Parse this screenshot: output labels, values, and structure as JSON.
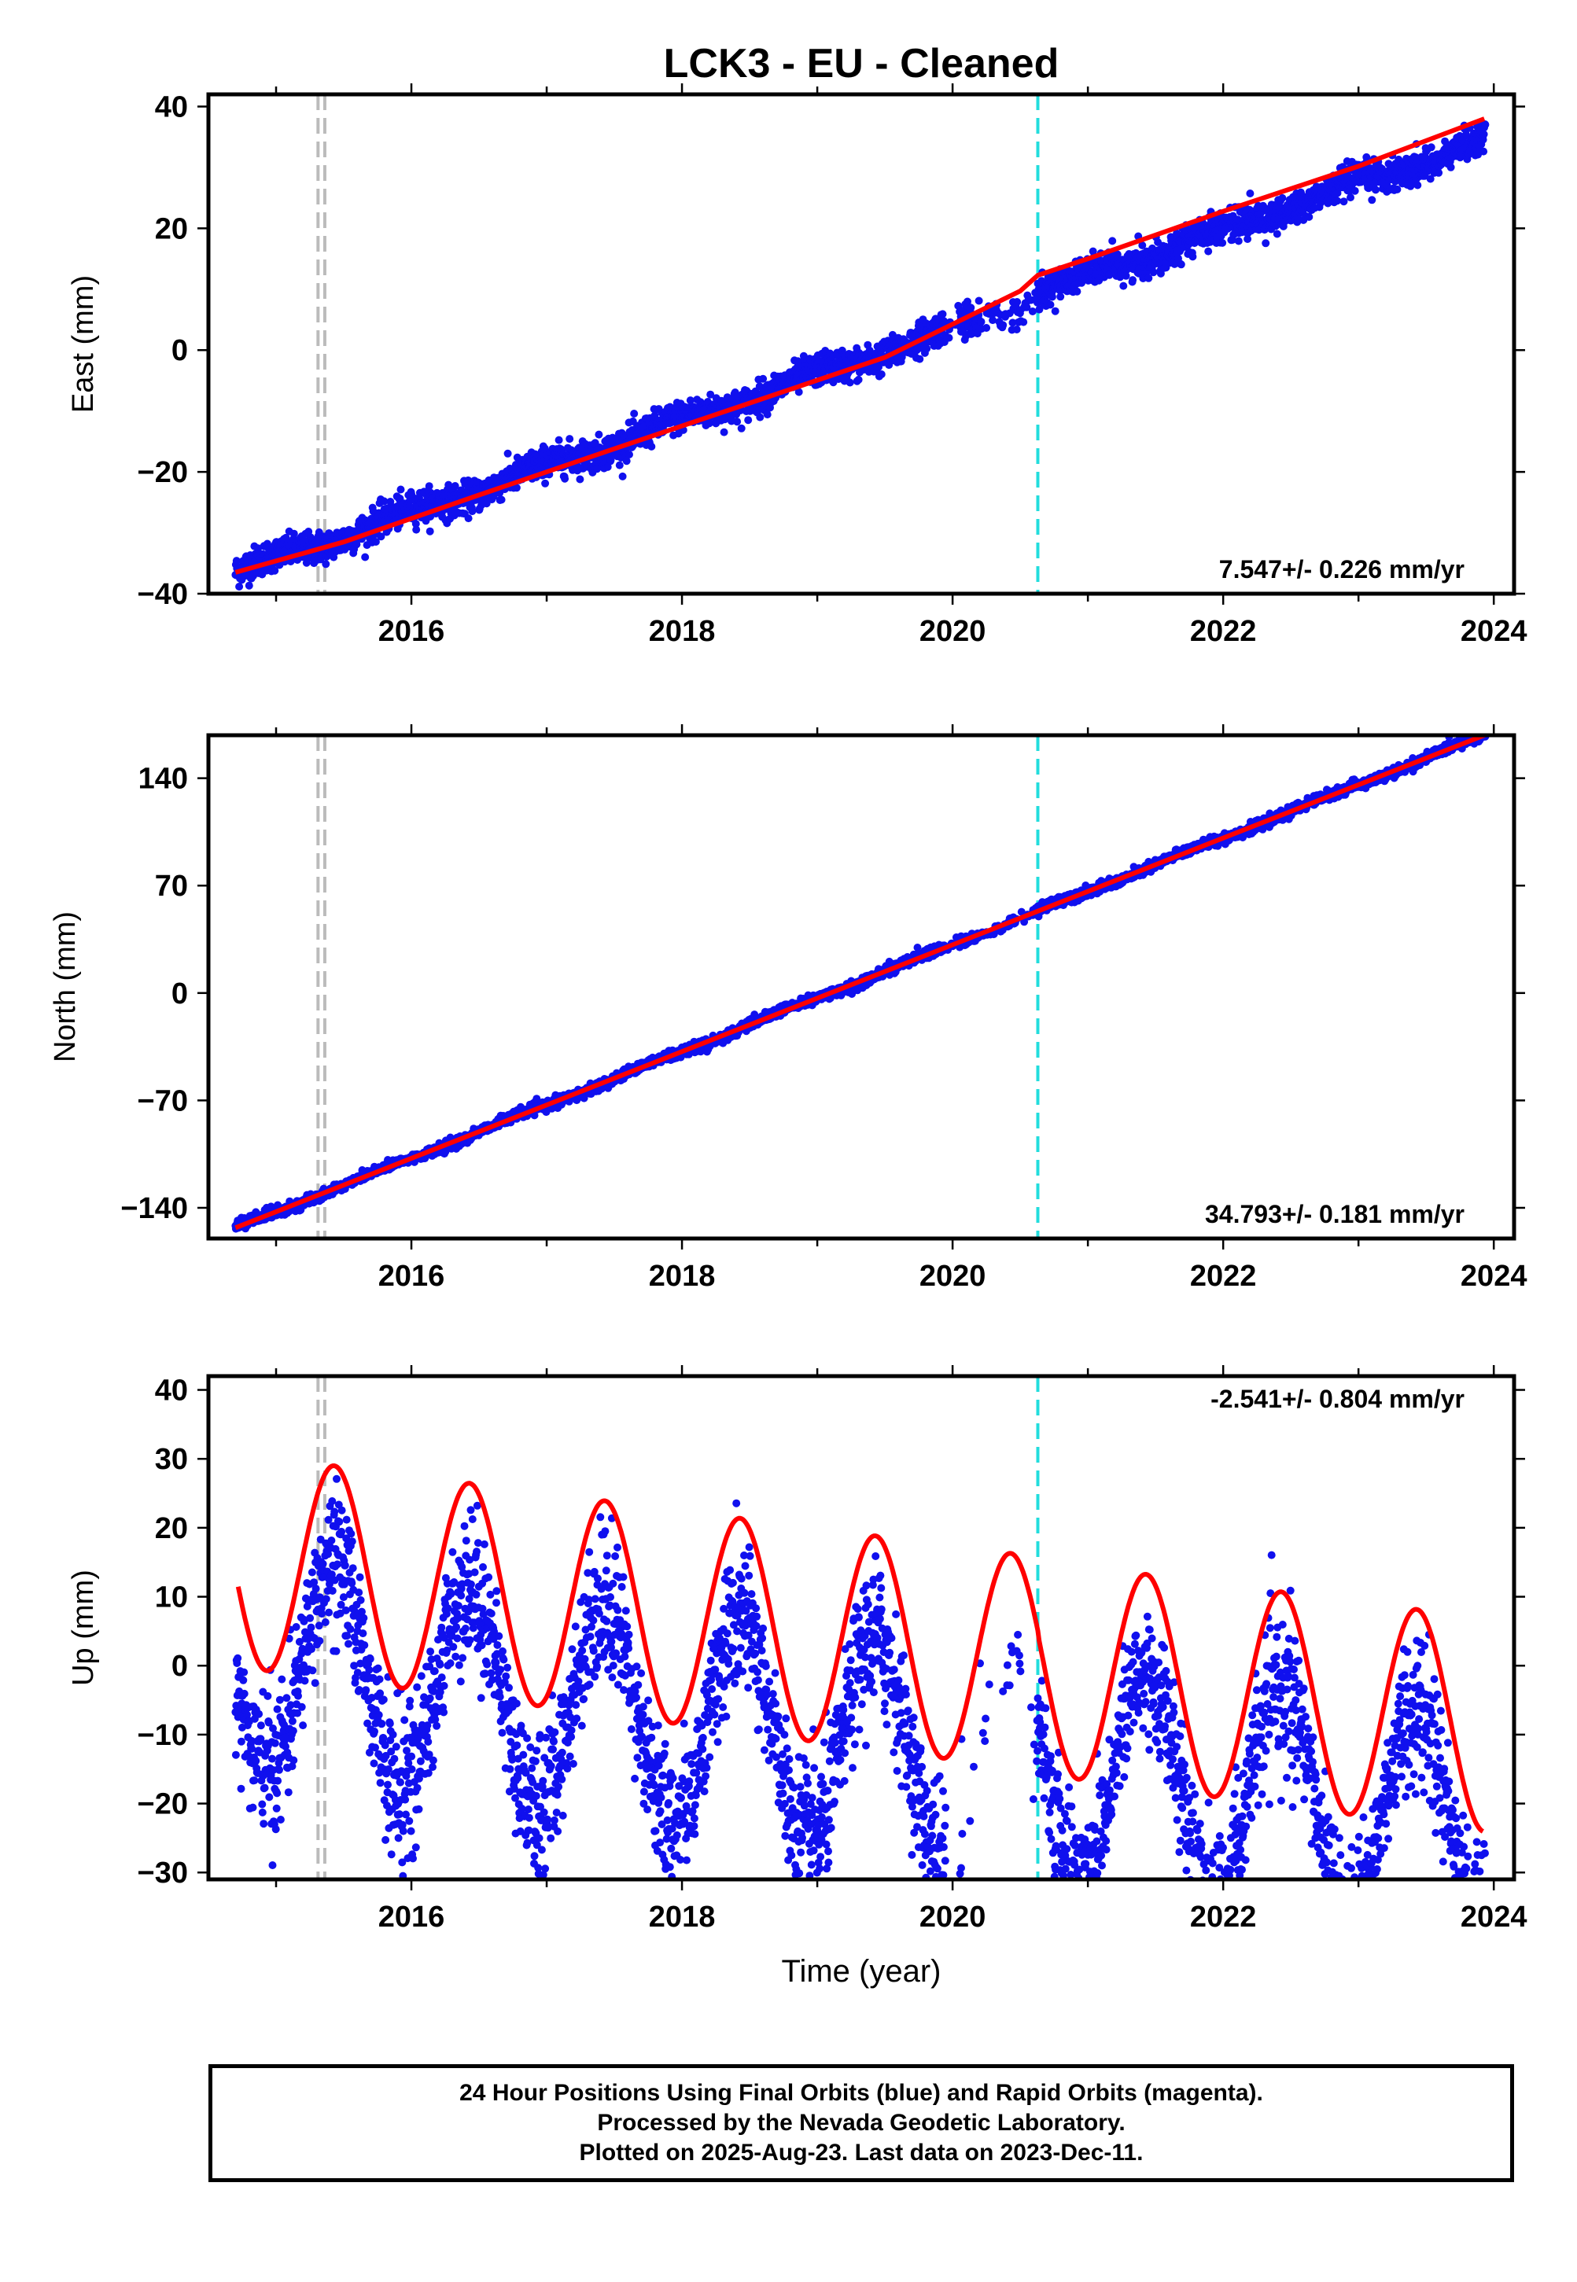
{
  "figure": {
    "title": "LCK3  - EU - Cleaned",
    "xlabel": "Time (year)"
  },
  "colors": {
    "data": "#1010ee",
    "model": "#ff0000",
    "event_gray": "#bbbbbb",
    "event_cyan": "#22dddd"
  },
  "footer": {
    "line1": "24 Hour Positions Using Final Orbits (blue) and Rapid Orbits (magenta).",
    "line2": "Processed by the Nevada Geodetic Laboratory.",
    "line3": "Plotted on 2025-Aug-23. Last data on 2023-Dec-11."
  },
  "chart_data": [
    {
      "type": "scatter",
      "component": "East",
      "ylabel": "East (mm)",
      "xlim": [
        2014.5,
        2024.15
      ],
      "ylim": [
        -40,
        42
      ],
      "yticks": [
        -40,
        -20,
        0,
        20,
        40
      ],
      "xticks": [
        2016,
        2018,
        2020,
        2022,
        2024
      ],
      "rate_label": "7.547+/- 0.226 mm/yr",
      "rate_position": "bottom-right",
      "events": [
        {
          "x": 2015.31,
          "style": "gray-dashed"
        },
        {
          "x": 2015.36,
          "style": "gray-dashed"
        },
        {
          "x": 2020.63,
          "style": "cyan-dashed"
        }
      ],
      "series": [
        {
          "role": "daily positions (final orbits)",
          "x_range": [
            2014.7,
            2023.94
          ],
          "model": {
            "a": -36.5,
            "rate": 7.547,
            "t0": 2014.7,
            "amp": 0.8,
            "phase": 0.3,
            "jump": {
              "x": 2020.63,
              "value": 1.2
            }
          },
          "scatter_mm": 1.3
        }
      ],
      "model_curve": {
        "x": [
          2014.7,
          2015.5,
          2016.5,
          2017.5,
          2018.5,
          2019.5,
          2020.5,
          2020.63,
          2021.0,
          2022.0,
          2023.0,
          2023.93
        ],
        "y": [
          -36.5,
          -31.5,
          -23.8,
          -16.2,
          -8.7,
          -1.2,
          9.7,
          12.3,
          15.0,
          22.8,
          30.2,
          38.0
        ]
      }
    },
    {
      "type": "scatter",
      "component": "North",
      "ylabel": "North (mm)",
      "xlim": [
        2014.5,
        2024.15
      ],
      "ylim": [
        -160,
        168
      ],
      "yticks": [
        -140,
        -70,
        0,
        70,
        140
      ],
      "xticks": [
        2016,
        2018,
        2020,
        2022,
        2024
      ],
      "rate_label": "34.793+/- 0.181 mm/yr",
      "rate_position": "bottom-right",
      "events": [
        {
          "x": 2015.31,
          "style": "gray-dashed"
        },
        {
          "x": 2015.36,
          "style": "gray-dashed"
        },
        {
          "x": 2020.63,
          "style": "cyan-dashed"
        }
      ],
      "series": [
        {
          "role": "daily positions (final orbits)",
          "x_range": [
            2014.7,
            2023.94
          ],
          "model": {
            "a": -153,
            "rate": 34.793,
            "t0": 2014.7,
            "amp": 1.2,
            "phase": 0.5,
            "jump": {
              "x": 2020.63,
              "value": 0
            }
          },
          "scatter_mm": 1.6
        }
      ],
      "model_curve": {
        "x": [
          2014.7,
          2016.0,
          2018.0,
          2020.0,
          2022.0,
          2023.93
        ],
        "y": [
          -153,
          -107.8,
          -38.2,
          31.4,
          101.0,
          168.0
        ]
      }
    },
    {
      "type": "scatter",
      "component": "Up",
      "ylabel": "Up (mm)",
      "xlim": [
        2014.5,
        2024.15
      ],
      "ylim": [
        -31,
        42
      ],
      "yticks": [
        -30,
        -20,
        -10,
        0,
        10,
        20,
        30,
        40
      ],
      "xticks": [
        2016,
        2018,
        2020,
        2022,
        2024
      ],
      "rate_label": "-2.541+/- 0.804 mm/yr",
      "rate_position": "top-right",
      "events": [
        {
          "x": 2015.31,
          "style": "gray-dashed"
        },
        {
          "x": 2015.36,
          "style": "gray-dashed"
        },
        {
          "x": 2020.63,
          "style": "cyan-dashed"
        }
      ],
      "series": [
        {
          "role": "daily positions (final orbits)",
          "x_range": [
            2014.7,
            2023.94
          ],
          "model": {
            "a": 14.5,
            "rate": -2.541,
            "t0": 2014.7,
            "amp": 15.5,
            "peak_fraction": 0.43
          },
          "scatter_mm": 3.8
        }
      ],
      "model_curve": {
        "x": [
          2014.72,
          2015.0,
          2015.43,
          2015.9,
          2016.43,
          2016.9,
          2017.43,
          2017.9,
          2018.43,
          2018.9,
          2019.43,
          2019.9,
          2020.43,
          2020.63,
          2020.9,
          2021.43,
          2021.9,
          2022.43,
          2022.9,
          2023.43,
          2023.9
        ],
        "y": [
          3.0,
          -1.5,
          28.5,
          0.0,
          25.8,
          -3.0,
          23.3,
          -5.5,
          20.7,
          -8.0,
          18.1,
          -10.5,
          15.7,
          -2.0,
          -13.0,
          13.5,
          -15.5,
          11.0,
          -18.0,
          8.8,
          -20.5
        ]
      }
    }
  ]
}
